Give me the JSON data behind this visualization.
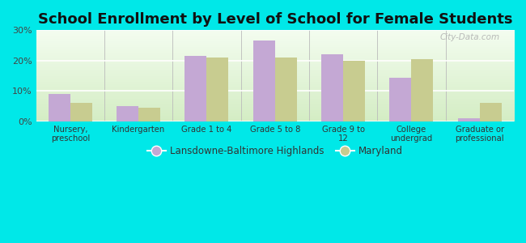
{
  "title": "School Enrollment by Level of School for Female Students",
  "categories": [
    "Nursery,\npreschool",
    "Kindergarten",
    "Grade 1 to 4",
    "Grade 5 to 8",
    "Grade 9 to\n12",
    "College\nundergrad",
    "Graduate or\nprofessional"
  ],
  "lansdowne_values": [
    9.0,
    5.0,
    21.5,
    26.5,
    22.0,
    14.5,
    1.0
  ],
  "maryland_values": [
    6.0,
    4.5,
    21.0,
    21.0,
    20.0,
    20.5,
    6.0
  ],
  "lansdowne_color": "#c4a8d4",
  "maryland_color": "#c8cc90",
  "background_outer": "#00e8e8",
  "background_inner_bottom": "#d4edc4",
  "background_inner_top": "#f4fdf0",
  "ylim": [
    0,
    30
  ],
  "yticks": [
    0,
    10,
    20,
    30
  ],
  "yticklabels": [
    "0%",
    "10%",
    "20%",
    "30%"
  ],
  "legend_labels": [
    "Lansdowne-Baltimore Highlands",
    "Maryland"
  ],
  "title_fontsize": 13,
  "watermark": "City-Data.com"
}
